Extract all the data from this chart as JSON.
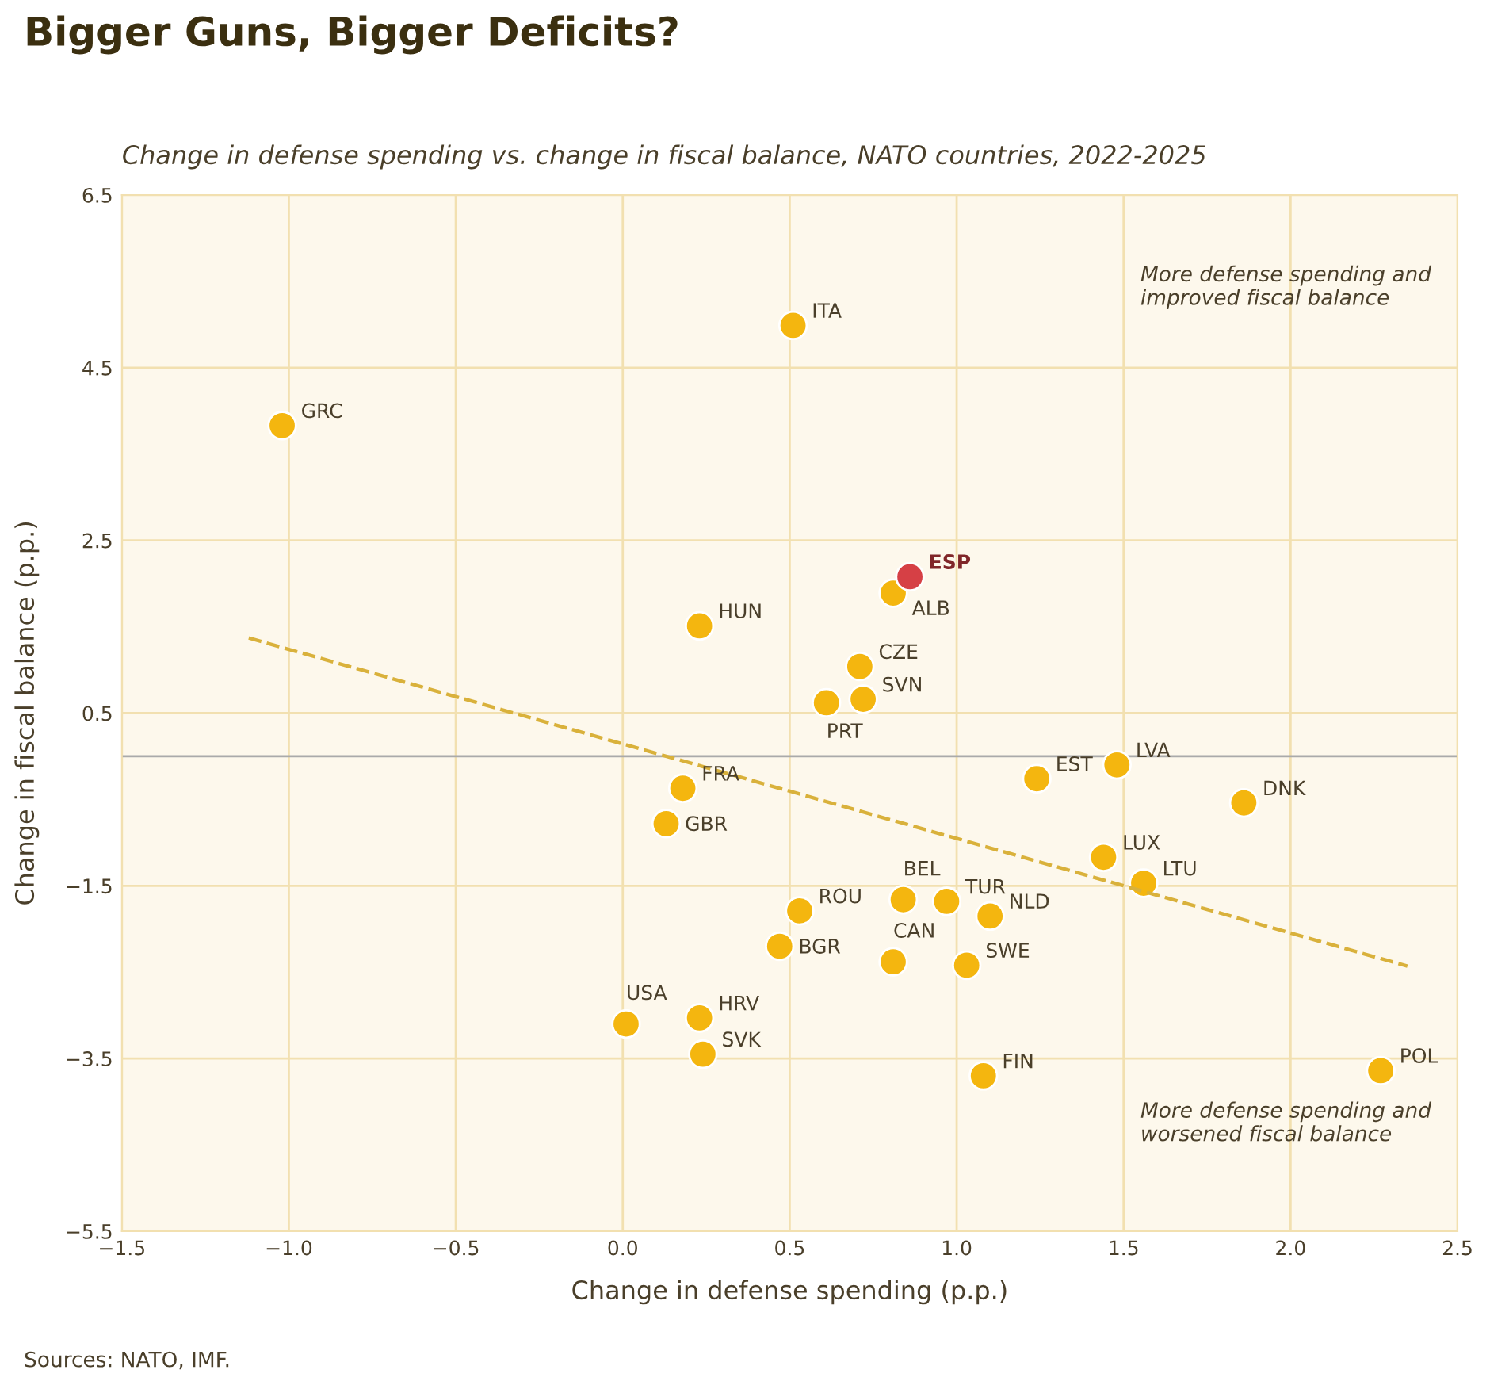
{
  "chart_data": {
    "type": "scatter",
    "title": "Bigger Guns, Bigger Deficits?",
    "subtitle": "Change in defense spending vs. change in fiscal balance, NATO countries, 2022-2025",
    "xlabel": "Change in defense spending (p.p.)",
    "ylabel": "Change in fiscal balance (p.p.)",
    "xlim": [
      -1.5,
      2.5
    ],
    "ylim": [
      -5.5,
      6.5
    ],
    "xticks": [
      -1.5,
      {
        "value": -1,
        "label": "−1.0"
      },
      -0.5,
      {
        "value": 0,
        "label": "0.0"
      },
      0.5,
      {
        "value": 1,
        "label": "1.0"
      },
      1.5,
      {
        "value": 2,
        "label": "2.0"
      },
      2.5
    ],
    "yticks": [
      -5.5,
      -3.5,
      -1.5,
      0.5,
      2.5,
      4.5,
      6.5
    ],
    "grid": true,
    "marker": "circle",
    "series": [
      {
        "color": "#f4b60f",
        "x": [
          -1.02,
          0.51,
          0.81,
          0.23,
          0.71,
          0.61,
          0.72,
          0.18,
          0.13,
          1.24,
          1.48,
          1.86,
          1.44,
          1.56,
          0.84,
          0.97,
          1.1,
          0.53,
          0.47,
          0.81,
          1.03,
          0.23,
          0.01,
          0.24,
          1.08,
          2.27
        ],
        "values": [
          3.83,
          4.99,
          1.89,
          1.51,
          1.04,
          0.62,
          0.66,
          -0.37,
          -0.78,
          -0.26,
          -0.1,
          -0.54,
          -1.17,
          -1.47,
          -1.66,
          -1.68,
          -1.85,
          -1.79,
          -2.2,
          -2.38,
          -2.42,
          -3.03,
          -3.1,
          -3.45,
          -3.7,
          -3.64
        ]
      },
      {
        "name": "ESP",
        "color": "#d64045",
        "x": [
          0.86
        ],
        "values": [
          2.08
        ]
      },
      {
        "type": "line",
        "color": "#d9b13b",
        "line_style": "dashed",
        "marker": "none",
        "x": [
          -1.12,
          2.35
        ],
        "values": [
          1.37,
          -2.43
        ]
      }
    ],
    "ref_lines": [
      {
        "axis": "y",
        "value": 0,
        "color": "#aaaaaa"
      }
    ],
    "annotations": [
      "More defense spending and\nimproved fiscal balance",
      "More defense spending and\nworsened fiscal balance",
      "Sources: NATO, IMF.",
      {
        "text": "GRC",
        "x": -1.02,
        "y": 3.83
      },
      {
        "text": "ITA",
        "x": 0.51,
        "y": 4.99
      },
      {
        "text": "ALB",
        "x": 0.81,
        "y": 1.89
      },
      {
        "text": "HUN",
        "x": 0.23,
        "y": 1.51
      },
      {
        "text": "CZE",
        "x": 0.71,
        "y": 1.04
      },
      {
        "text": "PRT",
        "x": 0.61,
        "y": 0.62
      },
      {
        "text": "SVN",
        "x": 0.72,
        "y": 0.66
      },
      {
        "text": "FRA",
        "x": 0.18,
        "y": -0.37
      },
      {
        "text": "GBR",
        "x": 0.13,
        "y": -0.78
      },
      {
        "text": "EST",
        "x": 1.24,
        "y": -0.26
      },
      {
        "text": "LVA",
        "x": 1.48,
        "y": -0.1
      },
      {
        "text": "DNK",
        "x": 1.86,
        "y": -0.54
      },
      {
        "text": "LUX",
        "x": 1.44,
        "y": -1.17
      },
      {
        "text": "LTU",
        "x": 1.56,
        "y": -1.47
      },
      {
        "text": "BEL",
        "x": 0.84,
        "y": -1.66
      },
      {
        "text": "TUR",
        "x": 0.97,
        "y": -1.68
      },
      {
        "text": "NLD",
        "x": 1.1,
        "y": -1.85
      },
      {
        "text": "ROU",
        "x": 0.53,
        "y": -1.79
      },
      {
        "text": "BGR",
        "x": 0.47,
        "y": -2.2
      },
      {
        "text": "CAN",
        "x": 0.81,
        "y": -2.38
      },
      {
        "text": "SWE",
        "x": 1.03,
        "y": -2.42
      },
      {
        "text": "HRV",
        "x": 0.23,
        "y": -3.03
      },
      {
        "text": "USA",
        "x": 0.01,
        "y": -3.1
      },
      {
        "text": "SVK",
        "x": 0.24,
        "y": -3.45
      },
      {
        "text": "FIN",
        "x": 1.08,
        "y": -3.7
      },
      {
        "text": "POL",
        "x": 2.27,
        "y": -3.64
      }
    ]
  }
}
